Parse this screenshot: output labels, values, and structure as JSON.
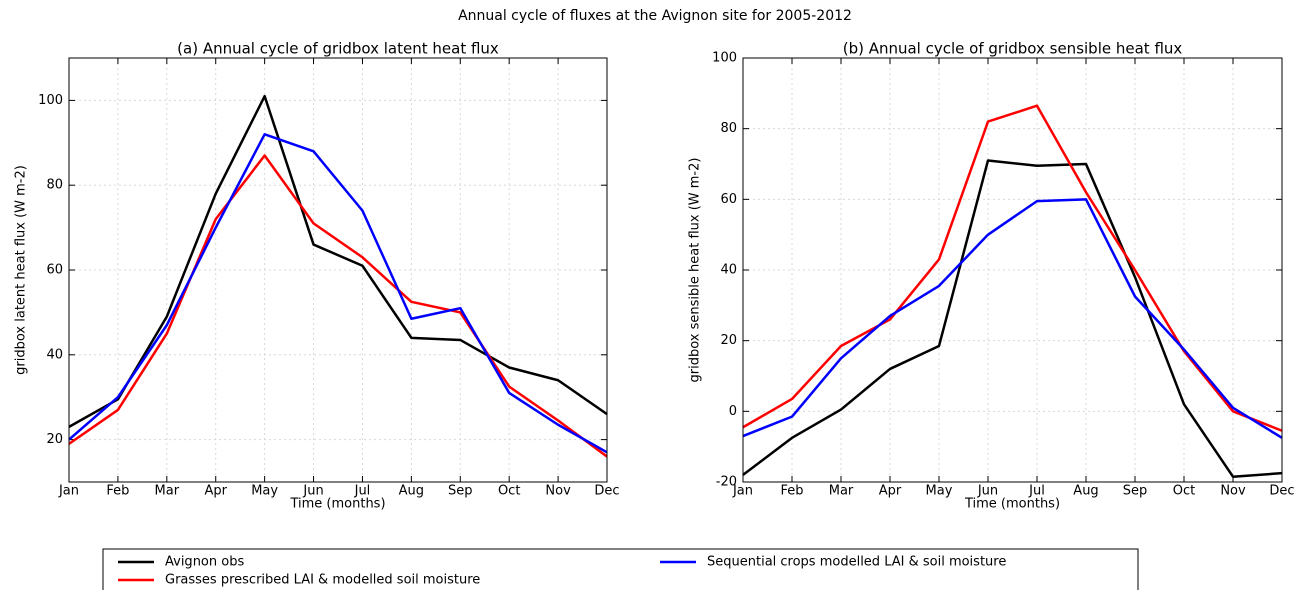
{
  "title": "Annual cycle of fluxes at the Avignon site for 2005-2012",
  "chart_data": [
    {
      "type": "line",
      "title": "(a) Annual cycle of gridbox latent heat flux",
      "x_label": "Time (months)",
      "y_label": "gridbox latent heat flux (W m-2)",
      "categories": [
        "Jan",
        "Feb",
        "Mar",
        "Apr",
        "May",
        "Jun",
        "Jul",
        "Aug",
        "Sep",
        "Oct",
        "Nov",
        "Dec"
      ],
      "ylim": [
        10,
        110
      ],
      "yticks": [
        20,
        40,
        60,
        80,
        100
      ],
      "grid": true,
      "series": [
        {
          "name": "Avignon obs",
          "color": "#000000",
          "values": [
            23,
            29.5,
            49,
            78,
            101,
            66,
            61,
            44,
            43.5,
            37,
            34,
            26
          ]
        },
        {
          "name": "Grasses prescribed LAI & modelled soil moisture",
          "color": "#ff0000",
          "values": [
            19,
            27,
            45,
            72,
            87,
            71,
            63,
            52.5,
            50,
            32.5,
            24.5,
            16
          ]
        },
        {
          "name": "Sequential crops modelled LAI & soil moisture",
          "color": "#0000ff",
          "values": [
            20,
            30,
            47,
            70,
            92,
            88,
            74,
            48.5,
            51,
            31,
            23.5,
            17
          ]
        }
      ]
    },
    {
      "type": "line",
      "title": "(b) Annual cycle of gridbox sensible heat flux",
      "x_label": "Time (months)",
      "y_label": "gridbox sensible heat flux (W m-2)",
      "categories": [
        "Jan",
        "Feb",
        "Mar",
        "Apr",
        "May",
        "Jun",
        "Jul",
        "Aug",
        "Sep",
        "Oct",
        "Nov",
        "Dec"
      ],
      "ylim": [
        -20,
        100
      ],
      "yticks": [
        -20,
        0,
        20,
        40,
        60,
        80,
        100
      ],
      "grid": true,
      "series": [
        {
          "color": "#000000",
          "values": [
            -18,
            -7.5,
            0.5,
            12,
            18.5,
            71,
            69.5,
            70,
            38,
            2,
            -18.5,
            -17.5
          ]
        },
        {
          "color": "#ff0000",
          "values": [
            -4.5,
            3.5,
            18.5,
            26,
            43,
            82,
            86.5,
            62,
            40,
            17,
            0,
            -5.5
          ]
        },
        {
          "color": "#0000ff",
          "values": [
            -7,
            -1.5,
            15,
            27,
            35.5,
            50,
            59.5,
            60,
            32.5,
            17.5,
            1,
            -7.5
          ]
        }
      ]
    }
  ]
}
